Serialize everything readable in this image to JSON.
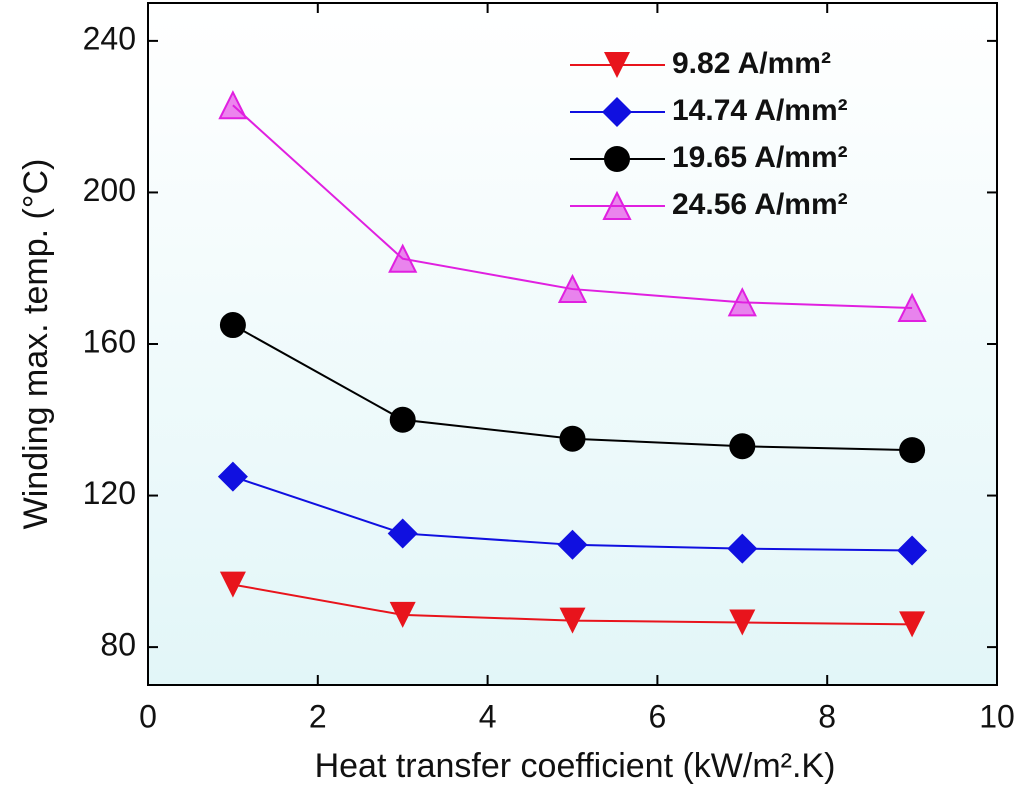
{
  "chart_data": {
    "type": "line",
    "x_label": "Heat transfer coefficient (kW/m².K)",
    "y_label": "Winding max. temp. (°C)",
    "x": [
      1,
      3,
      5,
      7,
      9
    ],
    "series": [
      {
        "name": "9.82 A/mm²",
        "color": "#e8141c",
        "marker": "triangle-down",
        "values": [
          96.5,
          88.5,
          87,
          86.5,
          86
        ]
      },
      {
        "name": "14.74 A/mm²",
        "color": "#1010e0",
        "marker": "diamond",
        "values": [
          125,
          110,
          107,
          106,
          105.5
        ]
      },
      {
        "name": "19.65 A/mm²",
        "color": "#000000",
        "marker": "circle",
        "values": [
          165,
          140,
          135,
          133,
          132
        ]
      },
      {
        "name": "24.56 A/mm²",
        "color": "#e020e0",
        "marker": "triangle-up",
        "values": [
          223,
          182.5,
          174.5,
          171,
          169.5
        ]
      }
    ],
    "xlim": [
      0,
      10
    ],
    "xticks": [
      0,
      2,
      4,
      6,
      8,
      10
    ],
    "ylim": [
      70,
      250
    ],
    "yticks": [
      80,
      120,
      160,
      200,
      240
    ],
    "legend": "upper right"
  }
}
